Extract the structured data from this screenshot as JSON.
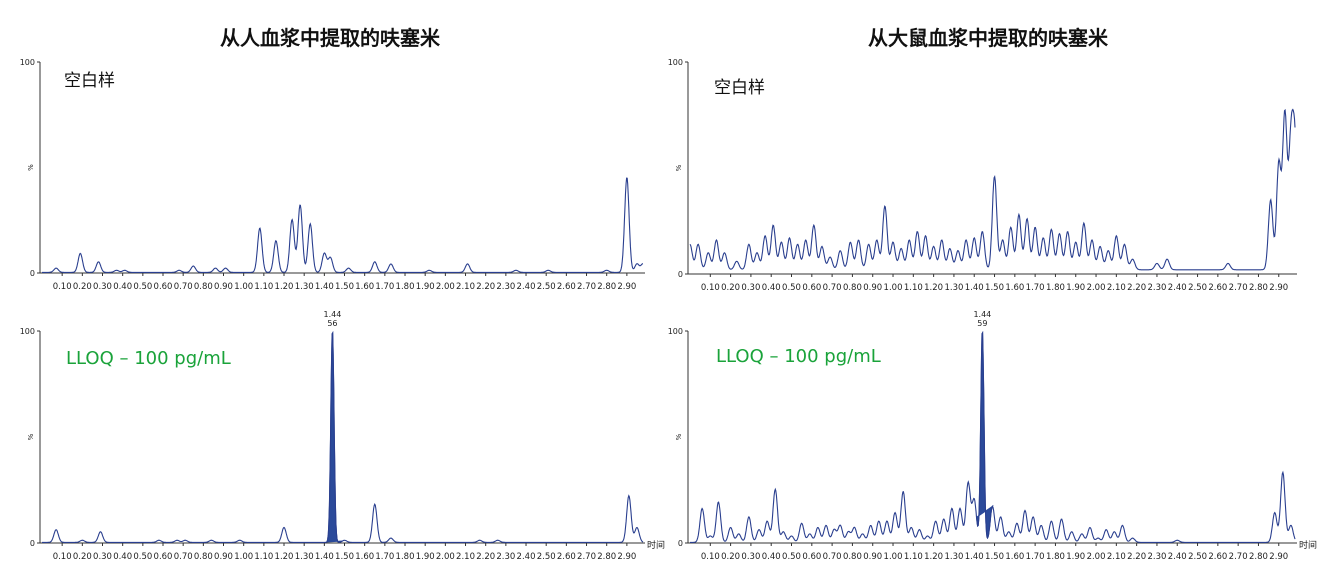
{
  "titles": {
    "left": "从人血浆中提取的呋塞米",
    "right": "从大鼠血浆中提取的呋塞米"
  },
  "colors": {
    "trace": "#2a3f8f",
    "peak_fill": "#2b4a9a",
    "blank_label": "#111111",
    "lloq_label": "#1aa33a"
  },
  "chart_data": [
    {
      "type": "line",
      "panel": "top-left",
      "title": "从人血浆中提取的呋塞米",
      "annotation": "空白样",
      "ylabel": "%",
      "ylim": [
        0,
        100
      ],
      "xlim": [
        0,
        2.98
      ],
      "x_ticks": [
        "0.10",
        "0.20",
        "0.30",
        "0.40",
        "0.50",
        "0.60",
        "0.70",
        "0.80",
        "0.90",
        "1.00",
        "1.10",
        "1.20",
        "1.30",
        "1.40",
        "1.50",
        "1.60",
        "1.70",
        "1.80",
        "1.90",
        "2.00",
        "2.10",
        "2.20",
        "2.30",
        "2.40",
        "2.50",
        "2.60",
        "2.70",
        "2.80",
        "2.90"
      ],
      "y_ticks": [
        "0",
        "100"
      ],
      "peaks": [
        [
          0.07,
          2
        ],
        [
          0.19,
          9
        ],
        [
          0.28,
          5
        ],
        [
          0.37,
          1
        ],
        [
          0.41,
          1
        ],
        [
          0.68,
          1
        ],
        [
          0.75,
          3
        ],
        [
          0.86,
          2
        ],
        [
          0.91,
          2
        ],
        [
          1.08,
          21
        ],
        [
          1.16,
          15
        ],
        [
          1.24,
          25
        ],
        [
          1.28,
          32
        ],
        [
          1.33,
          23
        ],
        [
          1.4,
          9
        ],
        [
          1.43,
          7
        ],
        [
          1.52,
          2
        ],
        [
          1.65,
          5
        ],
        [
          1.73,
          4
        ],
        [
          1.92,
          1
        ],
        [
          2.11,
          4
        ],
        [
          2.35,
          1
        ],
        [
          2.51,
          1
        ],
        [
          2.8,
          1
        ],
        [
          2.9,
          45
        ],
        [
          2.95,
          4
        ],
        [
          2.98,
          4
        ]
      ]
    },
    {
      "type": "line",
      "panel": "bottom-left",
      "annotation": "LLOQ – 100 pg/mL",
      "ylabel": "%",
      "xlabel": "时间",
      "ylim": [
        0,
        100
      ],
      "xlim": [
        0,
        2.98
      ],
      "x_ticks": [
        "0.10",
        "0.20",
        "0.30",
        "0.40",
        "0.50",
        "0.60",
        "0.70",
        "0.80",
        "0.90",
        "1.00",
        "1.10",
        "1.20",
        "1.30",
        "1.40",
        "1.50",
        "1.60",
        "1.70",
        "1.80",
        "1.90",
        "2.00",
        "2.10",
        "2.20",
        "2.30",
        "2.40",
        "2.50",
        "2.60",
        "2.70",
        "2.80",
        "2.90"
      ],
      "y_ticks": [
        "0",
        "100"
      ],
      "labelled_peak": {
        "time": "1.44",
        "area": "56",
        "x": 1.44,
        "y": 100
      },
      "peaks": [
        [
          0.07,
          6
        ],
        [
          0.2,
          1
        ],
        [
          0.29,
          5
        ],
        [
          0.58,
          1
        ],
        [
          0.67,
          1
        ],
        [
          0.71,
          1
        ],
        [
          0.84,
          1
        ],
        [
          0.98,
          1
        ],
        [
          1.2,
          7
        ],
        [
          1.44,
          100
        ],
        [
          1.5,
          1
        ],
        [
          1.65,
          18
        ],
        [
          1.73,
          2
        ],
        [
          2.17,
          1
        ],
        [
          2.26,
          1
        ],
        [
          2.91,
          22
        ],
        [
          2.95,
          7
        ]
      ]
    },
    {
      "type": "line",
      "panel": "top-right",
      "title": "从大鼠血浆中提取的呋塞米",
      "annotation": "空白样",
      "ylabel": "%",
      "ylim": [
        0,
        100
      ],
      "xlim": [
        0,
        2.98
      ],
      "x_ticks": [
        "0.10",
        "0.20",
        "0.30",
        "0.40",
        "0.50",
        "0.60",
        "0.70",
        "0.80",
        "0.90",
        "1.00",
        "1.10",
        "1.20",
        "1.30",
        "1.40",
        "1.50",
        "1.60",
        "1.70",
        "1.80",
        "1.90",
        "2.00",
        "2.10",
        "2.20",
        "2.30",
        "2.40",
        "2.50",
        "2.60",
        "2.70",
        "2.80",
        "2.90"
      ],
      "y_ticks": [
        "0",
        "100"
      ],
      "baseline": 2,
      "peaks": [
        [
          0.0,
          12
        ],
        [
          0.04,
          12
        ],
        [
          0.09,
          8
        ],
        [
          0.13,
          14
        ],
        [
          0.17,
          8
        ],
        [
          0.23,
          4
        ],
        [
          0.29,
          12
        ],
        [
          0.33,
          8
        ],
        [
          0.37,
          16
        ],
        [
          0.41,
          21
        ],
        [
          0.45,
          13
        ],
        [
          0.49,
          15
        ],
        [
          0.53,
          12
        ],
        [
          0.57,
          14
        ],
        [
          0.61,
          21
        ],
        [
          0.65,
          11
        ],
        [
          0.69,
          6
        ],
        [
          0.74,
          9
        ],
        [
          0.79,
          13
        ],
        [
          0.83,
          14
        ],
        [
          0.88,
          12
        ],
        [
          0.92,
          14
        ],
        [
          0.96,
          30
        ],
        [
          1.0,
          13
        ],
        [
          1.04,
          10
        ],
        [
          1.08,
          14
        ],
        [
          1.12,
          18
        ],
        [
          1.16,
          16
        ],
        [
          1.2,
          11
        ],
        [
          1.24,
          14
        ],
        [
          1.28,
          10
        ],
        [
          1.32,
          9
        ],
        [
          1.36,
          14
        ],
        [
          1.4,
          15
        ],
        [
          1.44,
          18
        ],
        [
          1.5,
          44
        ],
        [
          1.54,
          14
        ],
        [
          1.58,
          20
        ],
        [
          1.62,
          26
        ],
        [
          1.66,
          24
        ],
        [
          1.7,
          20
        ],
        [
          1.74,
          15
        ],
        [
          1.78,
          19
        ],
        [
          1.82,
          17
        ],
        [
          1.86,
          18
        ],
        [
          1.9,
          13
        ],
        [
          1.94,
          22
        ],
        [
          1.98,
          14
        ],
        [
          2.02,
          11
        ],
        [
          2.06,
          9
        ],
        [
          2.1,
          16
        ],
        [
          2.14,
          12
        ],
        [
          2.18,
          5
        ],
        [
          2.3,
          3
        ],
        [
          2.35,
          5
        ],
        [
          2.65,
          3
        ],
        [
          2.86,
          33
        ],
        [
          2.9,
          50
        ],
        [
          2.93,
          73
        ],
        [
          2.96,
          58
        ],
        [
          2.98,
          56
        ]
      ]
    },
    {
      "type": "line",
      "panel": "bottom-right",
      "annotation": "LLOQ – 100 pg/mL",
      "ylabel": "%",
      "xlabel": "时间",
      "ylim": [
        0,
        100
      ],
      "xlim": [
        0,
        2.98
      ],
      "x_ticks": [
        "0.10",
        "0.20",
        "0.30",
        "0.40",
        "0.50",
        "0.60",
        "0.70",
        "0.80",
        "0.90",
        "1.00",
        "1.10",
        "1.20",
        "1.30",
        "1.40",
        "1.50",
        "1.60",
        "1.70",
        "1.80",
        "1.90",
        "2.00",
        "2.10",
        "2.20",
        "2.30",
        "2.40",
        "2.50",
        "2.60",
        "2.70",
        "2.80",
        "2.90"
      ],
      "y_ticks": [
        "0",
        "100"
      ],
      "labelled_peak": {
        "time": "1.44",
        "area": "59",
        "x": 1.44,
        "y": 100
      },
      "peaks": [
        [
          0.06,
          16
        ],
        [
          0.1,
          3
        ],
        [
          0.14,
          19
        ],
        [
          0.2,
          7
        ],
        [
          0.24,
          4
        ],
        [
          0.29,
          12
        ],
        [
          0.34,
          6
        ],
        [
          0.38,
          10
        ],
        [
          0.42,
          25
        ],
        [
          0.46,
          5
        ],
        [
          0.5,
          3
        ],
        [
          0.55,
          9
        ],
        [
          0.59,
          4
        ],
        [
          0.63,
          7
        ],
        [
          0.67,
          8
        ],
        [
          0.71,
          6
        ],
        [
          0.74,
          8
        ],
        [
          0.78,
          5
        ],
        [
          0.81,
          7
        ],
        [
          0.85,
          4
        ],
        [
          0.89,
          8
        ],
        [
          0.93,
          10
        ],
        [
          0.97,
          10
        ],
        [
          1.01,
          14
        ],
        [
          1.05,
          24
        ],
        [
          1.09,
          7
        ],
        [
          1.13,
          6
        ],
        [
          1.17,
          3
        ],
        [
          1.21,
          10
        ],
        [
          1.25,
          11
        ],
        [
          1.29,
          16
        ],
        [
          1.33,
          16
        ],
        [
          1.37,
          28
        ],
        [
          1.4,
          20
        ],
        [
          1.44,
          100
        ],
        [
          1.49,
          17
        ],
        [
          1.53,
          12
        ],
        [
          1.57,
          5
        ],
        [
          1.61,
          9
        ],
        [
          1.65,
          15
        ],
        [
          1.69,
          12
        ],
        [
          1.73,
          8
        ],
        [
          1.78,
          10
        ],
        [
          1.83,
          11
        ],
        [
          1.88,
          5
        ],
        [
          1.93,
          4
        ],
        [
          1.97,
          7
        ],
        [
          2.01,
          2
        ],
        [
          2.05,
          6
        ],
        [
          2.09,
          5
        ],
        [
          2.13,
          8
        ],
        [
          2.18,
          2
        ],
        [
          2.4,
          1
        ],
        [
          2.88,
          14
        ],
        [
          2.92,
          33
        ],
        [
          2.96,
          8
        ]
      ]
    }
  ]
}
